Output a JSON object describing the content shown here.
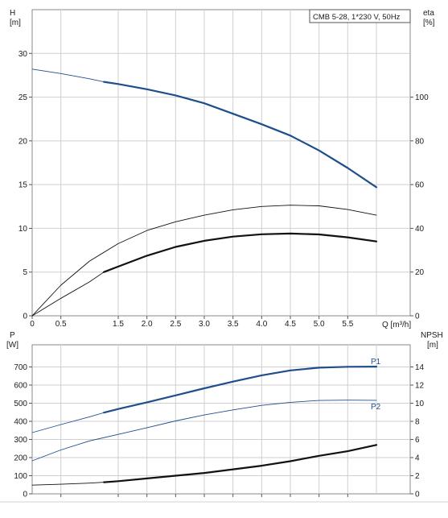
{
  "colors": {
    "blue": "#1f4e8c",
    "black": "#111111",
    "grid": "#cfcfcf",
    "frame": "#8a8a8a"
  },
  "chart_data": [
    {
      "type": "line",
      "legend_text": "CMB 5-28, 1*230 V, 50Hz",
      "legend_position": "top-right",
      "grid": true,
      "xlabel": "Q [m³/h]",
      "xlim": [
        0,
        6
      ],
      "x_ticks": [
        0,
        0.5,
        1.5,
        2.0,
        2.5,
        3.0,
        3.5,
        4.0,
        4.5,
        5.0,
        5.5
      ],
      "x_tick_labels": [
        "0",
        "0.5",
        "1.5",
        "2.0",
        "2.5",
        "3.0",
        "3.5",
        "4.0",
        "4.5",
        "5.0",
        "5.5"
      ],
      "left_axis": {
        "label_line1": "H",
        "label_line2": "[m]",
        "lim": [
          0,
          35
        ],
        "ticks": [
          0,
          5,
          10,
          15,
          20,
          25,
          30
        ]
      },
      "right_axis": {
        "label_line1": "eta",
        "label_line2": "[%]",
        "lim": [
          0,
          140
        ],
        "ticks": [
          0,
          20,
          40,
          60,
          80,
          100
        ]
      },
      "series": [
        {
          "axis": "left",
          "color": "#1f4e8c",
          "style": "thin",
          "x": [
            0,
            0.5,
            1.0,
            1.25
          ],
          "y": [
            28.2,
            27.7,
            27.1,
            26.75
          ]
        },
        {
          "axis": "left",
          "color": "#1f4e8c",
          "style": "thick",
          "x": [
            1.25,
            1.5,
            2.0,
            2.5,
            3.0,
            3.5,
            4.0,
            4.5,
            5.0,
            5.5,
            6.0
          ],
          "y": [
            26.75,
            26.5,
            25.9,
            25.2,
            24.3,
            23.1,
            21.9,
            20.6,
            18.9,
            16.9,
            14.7
          ]
        },
        {
          "axis": "right",
          "color": "#111111",
          "style": "thin",
          "x": [
            0,
            0.5,
            1.0,
            1.5,
            2.0,
            2.5,
            3.0,
            3.5,
            4.0,
            4.5,
            5.0,
            5.5,
            6.0
          ],
          "y": [
            0,
            14,
            25,
            33,
            39,
            43,
            46,
            48.5,
            50,
            50.6,
            50.3,
            48.6,
            46
          ]
        },
        {
          "axis": "right",
          "color": "#111111",
          "style": "thin",
          "x": [
            0,
            0.5,
            1.0,
            1.25
          ],
          "y": [
            0,
            8,
            15.5,
            20
          ]
        },
        {
          "axis": "right",
          "color": "#111111",
          "style": "thick",
          "x": [
            1.25,
            1.5,
            2.0,
            2.5,
            3.0,
            3.5,
            4.0,
            4.5,
            5.0,
            5.5,
            6.0
          ],
          "y": [
            20,
            22.5,
            27.5,
            31.5,
            34.3,
            36.2,
            37.3,
            37.6,
            37.2,
            35.9,
            34
          ]
        }
      ]
    },
    {
      "type": "line",
      "grid": true,
      "xlim": [
        0,
        6
      ],
      "x_ticks": [
        0.5,
        1.5,
        2.0,
        2.5,
        3.0,
        3.5,
        4.0,
        4.5,
        5.0,
        5.5
      ],
      "left_axis": {
        "label_line1": "P",
        "label_line2": "[W]",
        "lim": [
          0,
          800
        ],
        "ticks": [
          0,
          100,
          200,
          300,
          400,
          500,
          600,
          700
        ]
      },
      "right_axis": {
        "label_line1": "NPSH",
        "label_line2": "[m]",
        "lim": [
          0,
          16
        ],
        "ticks": [
          0,
          2,
          4,
          6,
          8,
          10,
          12,
          14
        ]
      },
      "series": [
        {
          "name": "P1",
          "axis": "left",
          "color": "#1f4e8c",
          "style": "thin",
          "x": [
            0,
            0.5,
            1.0,
            1.25
          ],
          "y": [
            338,
            382,
            425,
            448
          ]
        },
        {
          "name": "P1",
          "axis": "left",
          "color": "#1f4e8c",
          "style": "thick",
          "x": [
            1.25,
            1.5,
            2.0,
            2.5,
            3.0,
            3.5,
            4.0,
            4.5,
            5.0,
            5.5,
            6.0
          ],
          "y": [
            448,
            468,
            505,
            543,
            582,
            619,
            654,
            681,
            696,
            701,
            702
          ]
        },
        {
          "name": "P2",
          "axis": "left",
          "color": "#1f4e8c",
          "style": "thin",
          "x": [
            0,
            0.5,
            1.0,
            1.5,
            2.0,
            2.5,
            3.0,
            3.5,
            4.0,
            4.5,
            5.0,
            5.5,
            6.0
          ],
          "y": [
            182,
            242,
            292,
            328,
            365,
            402,
            435,
            463,
            488,
            505,
            515,
            517,
            516
          ]
        },
        {
          "axis": "right",
          "color": "#111111",
          "style": "thin",
          "x": [
            0,
            0.5,
            1.0,
            1.25
          ],
          "y": [
            0.96,
            1.06,
            1.18,
            1.28
          ]
        },
        {
          "axis": "right",
          "color": "#111111",
          "style": "thick",
          "x": [
            1.25,
            1.5,
            2.0,
            2.5,
            3.0,
            3.5,
            4.0,
            4.5,
            5.0,
            5.5,
            6.0
          ],
          "y": [
            1.28,
            1.4,
            1.7,
            2.0,
            2.3,
            2.7,
            3.1,
            3.6,
            4.2,
            4.7,
            5.4
          ]
        }
      ]
    }
  ]
}
